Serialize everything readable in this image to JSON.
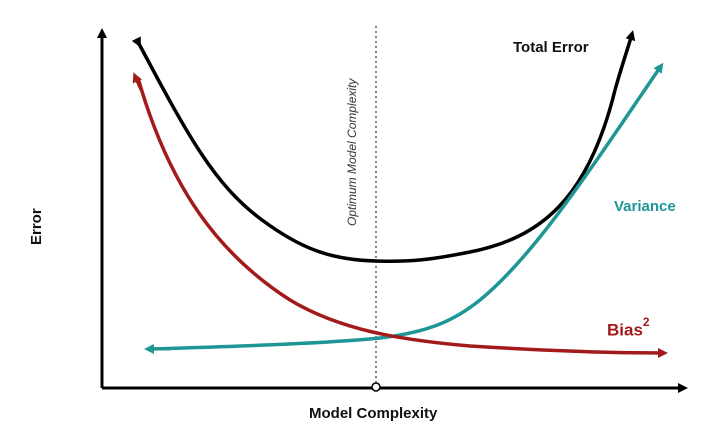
{
  "axes": {
    "y_label": "Error",
    "x_label": "Model Complexity"
  },
  "annotation": {
    "optimum_label": "Optimum Model Complexity"
  },
  "curves": {
    "total_error_label": "Total Error",
    "variance_label": "Variance",
    "bias_label": "Bias",
    "bias_superscript": "2"
  },
  "colors": {
    "total_error": "#000000",
    "variance": "#1e9696",
    "bias": "#a31a1a",
    "axes": "#000000",
    "optimum_line": "#555555"
  }
}
